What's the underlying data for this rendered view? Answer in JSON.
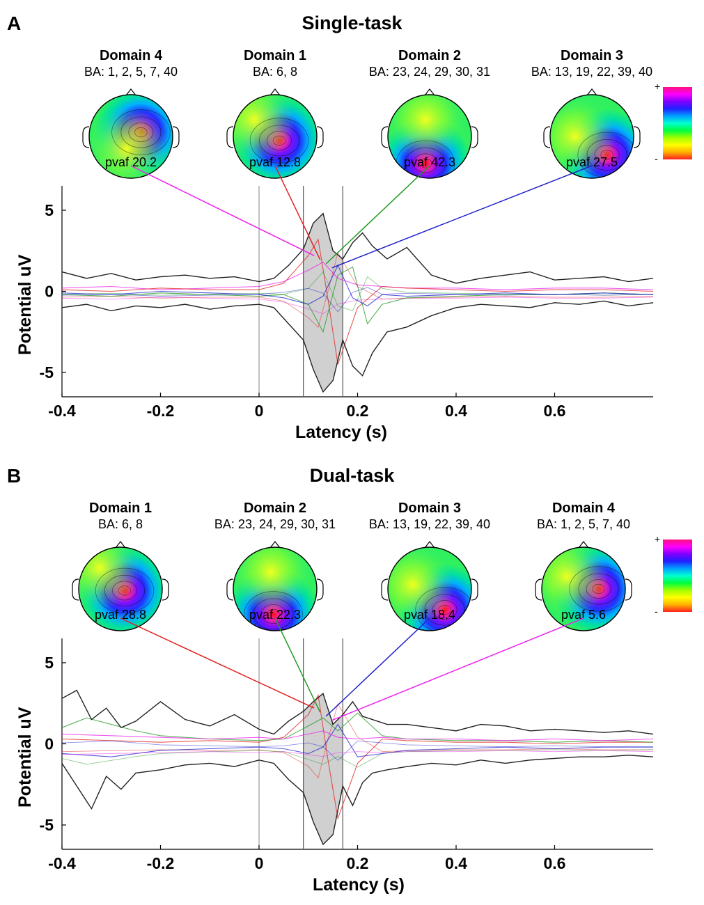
{
  "colorbar": {
    "plus": "+",
    "minus": "-",
    "colors": [
      "#ff2020",
      "#ffb000",
      "#ffff00",
      "#a0ff00",
      "#00ff40",
      "#00ffd0",
      "#00a0ff",
      "#2020ff",
      "#8000ff",
      "#ff00ff",
      "#ff1080"
    ]
  },
  "chart_data": [
    {
      "type": "line",
      "panel": "A",
      "title": "Single-task",
      "xlabel": "Latency (s)",
      "ylabel": "Potential uV",
      "xlim": [
        -0.4,
        0.8
      ],
      "ylim": [
        -6.5,
        6.5
      ],
      "xticks": [
        -0.4,
        -0.2,
        0,
        0.2,
        0.4,
        0.6
      ],
      "xtick_labels": [
        "-0.4",
        "-0.2",
        "0",
        "0.2",
        "0.4",
        "0.6"
      ],
      "yticks": [
        5,
        0,
        -5
      ],
      "ytick_labels": [
        "5",
        "0",
        "-5"
      ],
      "vlines": [
        0,
        0.09,
        0.17
      ],
      "shaded_window": [
        0.09,
        0.17
      ],
      "domains": [
        {
          "name": "Domain 4",
          "ba": "BA: 1, 2, 5, 7, 40",
          "pvaf": "pvaf 20.2",
          "color": "#ee22ee",
          "hot": [
            0.62,
            0.45
          ],
          "cold": [
            0.45,
            0.65
          ]
        },
        {
          "name": "Domain 1",
          "ba": "BA: 6, 8",
          "pvaf": "pvaf 12.8",
          "color": "#e22222",
          "hot": [
            0.55,
            0.55
          ],
          "cold": [
            0.25,
            0.3
          ]
        },
        {
          "name": "Domain 2",
          "ba": "BA: 23, 24, 29, 30, 31",
          "pvaf": "pvaf 42.3",
          "color": "#229922",
          "hot": [
            0.45,
            0.82
          ],
          "cold": [
            0.45,
            0.3
          ]
        },
        {
          "name": "Domain 3",
          "ba": "BA: 13, 19, 22, 39, 40",
          "pvaf": "pvaf 27.5",
          "color": "#2222cc",
          "hot": [
            0.68,
            0.72
          ],
          "cold": [
            0.3,
            0.5
          ]
        }
      ],
      "envelope": {
        "x": [
          -0.4,
          -0.35,
          -0.3,
          -0.25,
          -0.2,
          -0.15,
          -0.1,
          -0.05,
          0,
          0.03,
          0.06,
          0.09,
          0.11,
          0.13,
          0.15,
          0.17,
          0.19,
          0.21,
          0.23,
          0.26,
          0.3,
          0.35,
          0.4,
          0.45,
          0.5,
          0.55,
          0.6,
          0.65,
          0.7,
          0.75,
          0.8
        ],
        "upper": [
          1.2,
          0.8,
          1.1,
          0.7,
          0.9,
          1.0,
          0.8,
          0.9,
          0.6,
          0.8,
          1.6,
          2.6,
          4.2,
          4.8,
          2.5,
          2.0,
          3.0,
          3.6,
          2.8,
          2.0,
          2.7,
          1.0,
          0.5,
          0.8,
          1.0,
          1.2,
          0.7,
          0.8,
          0.9,
          0.6,
          0.8
        ],
        "lower": [
          -1.0,
          -0.8,
          -1.2,
          -0.9,
          -1.0,
          -0.8,
          -1.1,
          -0.9,
          -0.8,
          -1.0,
          -2.0,
          -3.0,
          -4.8,
          -6.2,
          -5.5,
          -3.0,
          -4.6,
          -5.2,
          -3.8,
          -2.5,
          -2.2,
          -1.5,
          -1.0,
          -0.8,
          -0.9,
          -1.0,
          -0.7,
          -0.8,
          -0.6,
          -0.9,
          -0.7
        ]
      },
      "series": [
        {
          "name": "Domain 4",
          "color": "#ee22ee",
          "x": [
            -0.4,
            -0.3,
            -0.2,
            -0.1,
            0,
            0.05,
            0.1,
            0.13,
            0.16,
            0.2,
            0.25,
            0.3,
            0.4,
            0.5,
            0.6,
            0.7,
            0.8
          ],
          "y": [
            0.2,
            0.3,
            0.1,
            0.2,
            0.3,
            0.6,
            1.3,
            1.8,
            0.8,
            0.4,
            0.3,
            0.2,
            0.2,
            0.1,
            0.2,
            0.2,
            0.1
          ]
        },
        {
          "name": "Domain 1",
          "color": "#e22222",
          "x": [
            -0.4,
            -0.3,
            -0.2,
            -0.1,
            0,
            0.05,
            0.1,
            0.12,
            0.14,
            0.16,
            0.2,
            0.25,
            0.3,
            0.4,
            0.5,
            0.6,
            0.7,
            0.8
          ],
          "y": [
            0.1,
            0.0,
            0.2,
            0.1,
            0.1,
            0.5,
            2.2,
            3.2,
            -0.5,
            -4.5,
            -1.0,
            0.3,
            0.2,
            0.1,
            0.0,
            0.1,
            0.1,
            0.0
          ]
        },
        {
          "name": "Domain 2",
          "color": "#229922",
          "x": [
            -0.4,
            -0.3,
            -0.2,
            -0.1,
            0,
            0.05,
            0.1,
            0.13,
            0.16,
            0.19,
            0.22,
            0.25,
            0.3,
            0.4,
            0.5,
            0.6,
            0.7,
            0.8
          ],
          "y": [
            -0.2,
            -0.3,
            -0.1,
            -0.2,
            -0.3,
            -0.2,
            -0.8,
            -2.5,
            1.0,
            1.5,
            -2.0,
            -0.8,
            -0.4,
            -0.3,
            -0.2,
            -0.2,
            -0.1,
            -0.2
          ]
        },
        {
          "name": "Domain 3",
          "color": "#2222cc",
          "x": [
            -0.4,
            -0.3,
            -0.2,
            -0.1,
            0,
            0.05,
            0.1,
            0.13,
            0.16,
            0.19,
            0.22,
            0.25,
            0.3,
            0.4,
            0.5,
            0.6,
            0.7,
            0.8
          ],
          "y": [
            -0.1,
            -0.2,
            0.0,
            -0.1,
            -0.2,
            -0.4,
            -0.8,
            -0.3,
            1.6,
            -0.4,
            -0.9,
            -0.2,
            -0.3,
            -0.2,
            -0.1,
            -0.2,
            -0.1,
            -0.2
          ]
        }
      ]
    },
    {
      "type": "line",
      "panel": "B",
      "title": "Dual-task",
      "xlabel": "Latency (s)",
      "ylabel": "Potential uV",
      "xlim": [
        -0.4,
        0.8
      ],
      "ylim": [
        -6.5,
        6.5
      ],
      "xticks": [
        -0.4,
        -0.2,
        0,
        0.2,
        0.4,
        0.6
      ],
      "xtick_labels": [
        "-0.4",
        "-0.2",
        "0",
        "0.2",
        "0.4",
        "0.6"
      ],
      "yticks": [
        5,
        0,
        -5
      ],
      "ytick_labels": [
        "5",
        "0",
        "-5"
      ],
      "vlines": [
        0,
        0.09,
        0.17
      ],
      "shaded_window": [
        0.09,
        0.17
      ],
      "domains": [
        {
          "name": "Domain 1",
          "ba": "BA: 6, 8",
          "pvaf": "pvaf 28.8",
          "color": "#e22222",
          "hot": [
            0.55,
            0.52
          ],
          "cold": [
            0.25,
            0.25
          ]
        },
        {
          "name": "Domain 2",
          "ba": "BA: 23, 24, 29, 30, 31",
          "pvaf": "pvaf 22.3",
          "color": "#229922",
          "hot": [
            0.48,
            0.8
          ],
          "cold": [
            0.45,
            0.3
          ]
        },
        {
          "name": "Domain 3",
          "ba": "BA: 13, 19, 22, 39, 40",
          "pvaf": "pvaf 18.4",
          "color": "#2222cc",
          "hot": [
            0.68,
            0.75
          ],
          "cold": [
            0.3,
            0.45
          ]
        },
        {
          "name": "Domain 4",
          "ba": "BA: 1, 2, 5, 7, 40",
          "pvaf": "pvaf 5.6",
          "color": "#ee22ee",
          "hot": [
            0.68,
            0.5
          ],
          "cold": [
            0.3,
            0.35
          ]
        }
      ],
      "envelope": {
        "x": [
          -0.4,
          -0.37,
          -0.34,
          -0.31,
          -0.28,
          -0.25,
          -0.2,
          -0.15,
          -0.1,
          -0.05,
          0,
          0.03,
          0.06,
          0.09,
          0.11,
          0.13,
          0.15,
          0.17,
          0.19,
          0.21,
          0.23,
          0.26,
          0.3,
          0.35,
          0.4,
          0.45,
          0.5,
          0.55,
          0.6,
          0.65,
          0.7,
          0.75,
          0.8
        ],
        "upper": [
          2.8,
          3.3,
          1.5,
          2.2,
          1.0,
          1.4,
          2.6,
          1.5,
          1.1,
          1.8,
          0.9,
          0.6,
          1.4,
          2.0,
          2.6,
          3.1,
          1.2,
          1.8,
          2.6,
          1.7,
          1.5,
          1.2,
          1.2,
          1.0,
          0.8,
          1.2,
          1.1,
          0.8,
          0.9,
          0.8,
          0.7,
          0.8,
          0.6
        ],
        "lower": [
          -1.2,
          -2.6,
          -4.0,
          -2.0,
          -2.8,
          -1.8,
          -1.6,
          -1.3,
          -1.2,
          -1.4,
          -1.0,
          -1.2,
          -2.2,
          -3.0,
          -4.8,
          -6.2,
          -5.6,
          -2.6,
          -3.8,
          -2.4,
          -1.8,
          -1.6,
          -1.4,
          -1.2,
          -1.3,
          -1.0,
          -1.2,
          -1.0,
          -0.9,
          -0.8,
          -0.8,
          -0.7,
          -0.8
        ]
      },
      "series": [
        {
          "name": "Domain 1",
          "color": "#e22222",
          "x": [
            -0.4,
            -0.3,
            -0.2,
            -0.1,
            0,
            0.05,
            0.1,
            0.12,
            0.14,
            0.16,
            0.2,
            0.25,
            0.3,
            0.4,
            0.5,
            0.6,
            0.7,
            0.8
          ],
          "y": [
            0.3,
            0.2,
            0.1,
            0.2,
            0.1,
            0.4,
            1.8,
            3.0,
            -1.0,
            -4.6,
            -1.2,
            0.3,
            0.2,
            0.1,
            0.1,
            0.0,
            0.1,
            0.1
          ]
        },
        {
          "name": "Domain 2",
          "color": "#229922",
          "x": [
            -0.4,
            -0.35,
            -0.3,
            -0.25,
            -0.2,
            -0.1,
            0,
            0.05,
            0.1,
            0.13,
            0.16,
            0.2,
            0.25,
            0.3,
            0.4,
            0.5,
            0.6,
            0.7,
            0.8
          ],
          "y": [
            1.0,
            1.6,
            1.2,
            0.8,
            0.5,
            0.3,
            0.2,
            0.3,
            1.1,
            1.6,
            0.8,
            1.9,
            0.5,
            0.3,
            0.2,
            0.2,
            0.1,
            0.2,
            0.1
          ]
        },
        {
          "name": "Domain 3",
          "color": "#2222cc",
          "x": [
            -0.4,
            -0.3,
            -0.2,
            -0.1,
            0,
            0.05,
            0.1,
            0.13,
            0.16,
            0.2,
            0.25,
            0.3,
            0.4,
            0.5,
            0.6,
            0.7,
            0.8
          ],
          "y": [
            -0.6,
            -0.8,
            -0.4,
            -0.3,
            -0.2,
            -0.3,
            -0.6,
            -0.2,
            1.2,
            -0.8,
            -0.6,
            -0.4,
            -0.3,
            -0.2,
            -0.3,
            -0.2,
            -0.2
          ]
        },
        {
          "name": "Domain 4",
          "color": "#ee22ee",
          "x": [
            -0.4,
            -0.3,
            -0.2,
            -0.1,
            0,
            0.05,
            0.1,
            0.13,
            0.16,
            0.2,
            0.25,
            0.3,
            0.4,
            0.5,
            0.6,
            0.7,
            0.8
          ],
          "y": [
            0.6,
            0.5,
            0.4,
            0.3,
            0.4,
            0.3,
            0.6,
            0.8,
            0.4,
            0.3,
            0.4,
            0.3,
            0.3,
            0.2,
            0.3,
            0.2,
            0.3
          ]
        }
      ]
    }
  ]
}
